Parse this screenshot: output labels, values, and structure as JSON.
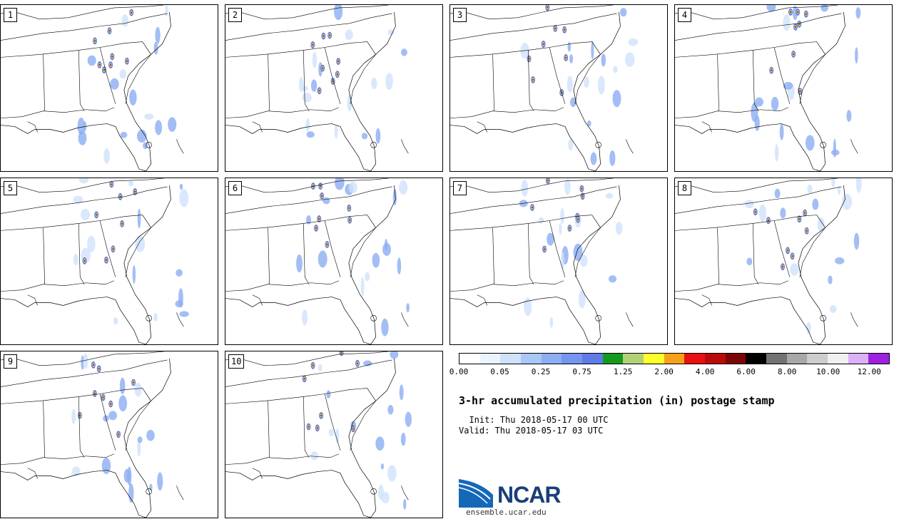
{
  "panels": [
    {
      "label": "1"
    },
    {
      "label": "2"
    },
    {
      "label": "3"
    },
    {
      "label": "4"
    },
    {
      "label": "5"
    },
    {
      "label": "6"
    },
    {
      "label": "7"
    },
    {
      "label": "8"
    },
    {
      "label": "9"
    },
    {
      "label": "10"
    }
  ],
  "colorbar": {
    "colors": [
      "#ffffff",
      "#eaf4ff",
      "#cfe2fb",
      "#a9c8f7",
      "#8caef3",
      "#7595ef",
      "#5f7be6",
      "#159a1f",
      "#b2d176",
      "#ffff2a",
      "#f7a11a",
      "#e8110f",
      "#bb0a0a",
      "#7c0606",
      "#000000",
      "#737373",
      "#a8a8a8",
      "#cdcdcd",
      "#f0f0f0",
      "#dcb1f7",
      "#9d22e0"
    ],
    "ticks": [
      "0.00",
      "0.05",
      "0.25",
      "0.75",
      "1.25",
      "2.00",
      "4.00",
      "6.00",
      "8.00",
      "10.00",
      "12.00"
    ]
  },
  "title": "3-hr accumulated precipitation (in) postage stamp",
  "init": "  Init: Thu 2018-05-17 00 UTC",
  "valid": "Valid: Thu 2018-05-17 03 UTC",
  "logo": {
    "name": "NCAR",
    "url": "ensemble.ucar.edu"
  }
}
